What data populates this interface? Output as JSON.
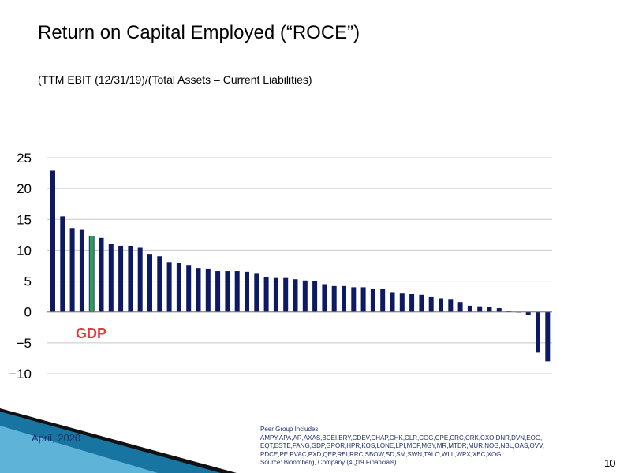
{
  "slide": {
    "title": "Return on Capital Employed (“ROCE”)",
    "subtitle": "(TTM EBIT (12/31/19)/(Total Assets – Current Liabilities)",
    "highlight_label": "GDP",
    "date": "April, 2020",
    "peer_group_heading": "Peer Group Includes:",
    "peer_group_list": "AMPY,APA,AR,AXAS,BCEI,BRY,CDEV,CHAP,CHK,CLR,COG,CPE,CRC,CRK,CXO,DNR,DVN,EOG, EQT,ESTE,FANG,GDP,GPOR,HPR,KOS,LONE,LPI,MCF,MGY,MR,MTDR,MUR,NOG,NBL,OAS,OVV, PDCE,PE,PVAC,PXD,QEP,REI,RRC,SBOW,SD,SM,SWN,TALO,WLL,WPX,XEC,XOG",
    "source": "Source: Bloomberg, Company (4Q19 Financials)",
    "page_number": "10"
  },
  "colors": {
    "bar": "#0d1a63",
    "highlight_bar": "#2e9e5b",
    "highlight_text": "#e8383d",
    "grid": "#c8c8c8",
    "accent_dark": "#111111",
    "accent_blue": "#1a7fb0"
  },
  "chart_data": {
    "type": "bar",
    "ylim": [
      -10,
      25
    ],
    "yticks": [
      "25",
      "20",
      "15",
      "10",
      "5",
      "0",
      "−5",
      "−10"
    ],
    "ytick_values": [
      25,
      20,
      15,
      10,
      5,
      0,
      -5,
      -10
    ],
    "grid": true,
    "highlight_index": 4,
    "values": [
      22.9,
      15.5,
      13.6,
      13.3,
      12.3,
      12.0,
      11.0,
      10.7,
      10.7,
      10.5,
      9.4,
      9.0,
      8.1,
      7.9,
      7.6,
      7.1,
      7.0,
      6.6,
      6.6,
      6.6,
      6.5,
      6.3,
      5.6,
      5.5,
      5.5,
      5.3,
      5.1,
      5.0,
      4.5,
      4.2,
      4.2,
      4.0,
      4.0,
      3.8,
      3.8,
      3.1,
      3.0,
      2.9,
      2.8,
      2.4,
      2.2,
      2.1,
      1.6,
      1.0,
      0.9,
      0.8,
      0.6,
      0.1,
      -0.1,
      -0.5,
      -6.6,
      -8.0
    ]
  }
}
